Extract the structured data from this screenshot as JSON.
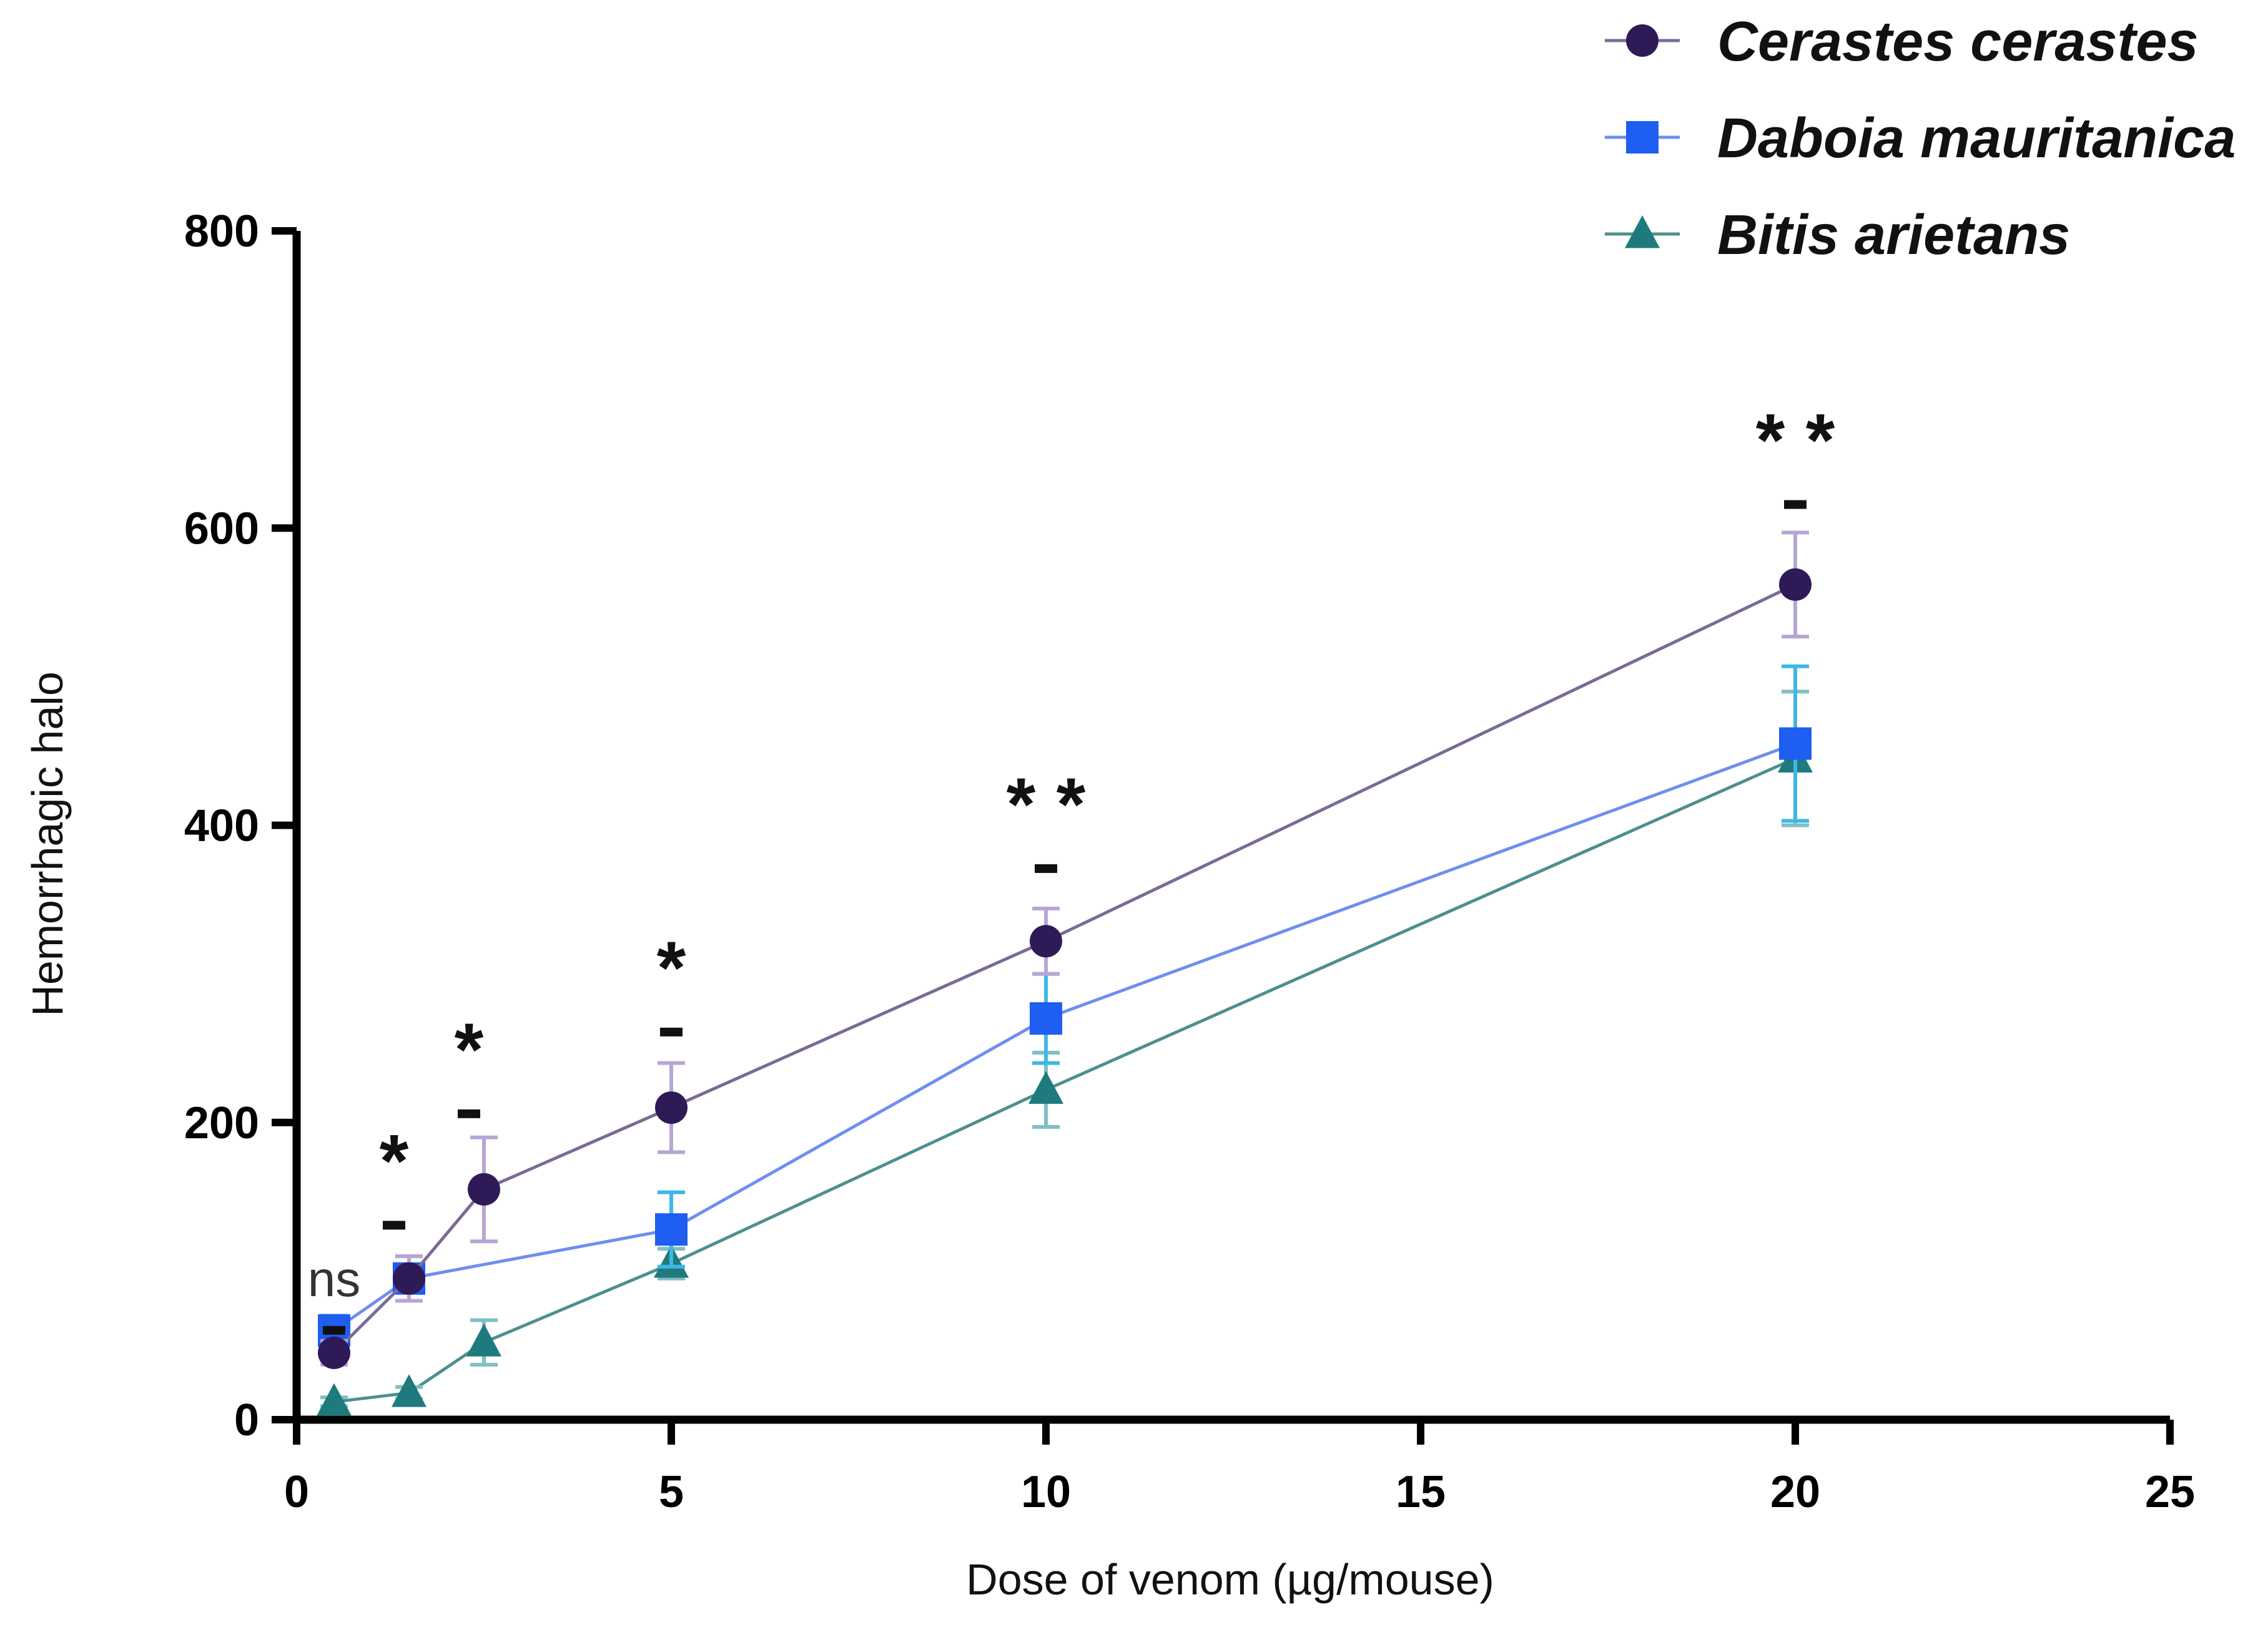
{
  "chart_data": {
    "type": "line",
    "xlabel": "Dose of venom (µg/mouse)",
    "ylabel": "Hemorrhagic halo",
    "xlim": [
      0,
      25
    ],
    "ylim": [
      0,
      800
    ],
    "x_ticks": [
      "0",
      "5",
      "10",
      "15",
      "20",
      "25"
    ],
    "y_ticks": [
      "0",
      "200",
      "400",
      "600",
      "800"
    ],
    "grid": false,
    "legend_position": "top-right",
    "x": [
      0.5,
      1.5,
      2.5,
      5,
      10,
      20
    ],
    "series": [
      {
        "name": "Cerastes cerastes",
        "marker": "circle",
        "color": "#2e1a57",
        "line_color": "#7b6a95",
        "error_color": "#b7a6d4",
        "x": [
          0.5,
          1.5,
          2.5,
          5,
          10,
          20
        ],
        "y": [
          45,
          95,
          155,
          210,
          322,
          562
        ],
        "error": [
          8,
          15,
          35,
          30,
          22,
          35
        ]
      },
      {
        "name": "Daboia mauritanica",
        "marker": "square",
        "color": "#1e5ef0",
        "line_color": "#6e8ef0",
        "error_color": "#3fb7e6",
        "x": [
          0.5,
          1.5,
          2.5,
          5,
          10,
          20
        ],
        "y": [
          60,
          95,
          null,
          128,
          270,
          455
        ],
        "error": [
          10,
          15,
          null,
          25,
          30,
          52
        ]
      },
      {
        "name": "Bitis arietans",
        "marker": "triangle",
        "color": "#1f7a7e",
        "line_color": "#4e8f8f",
        "error_color": "#7fc0c2",
        "x": [
          0.5,
          1.5,
          2.5,
          5,
          10,
          20
        ],
        "y": [
          12,
          18,
          52,
          105,
          222,
          445
        ],
        "error": [
          3,
          4,
          15,
          10,
          25,
          45
        ]
      }
    ],
    "annotations": [
      {
        "x": 0.5,
        "y": 100,
        "text": "ns",
        "dash": true
      },
      {
        "x": 1.3,
        "y": 180,
        "text": "*",
        "dash": true
      },
      {
        "x": 2.3,
        "y": 255,
        "text": "*",
        "dash": true
      },
      {
        "x": 5,
        "y": 310,
        "text": "*",
        "dash": true
      },
      {
        "x": 10,
        "y": 420,
        "text": "* *",
        "dash": true
      },
      {
        "x": 20,
        "y": 665,
        "text": "* *",
        "dash": true
      }
    ]
  }
}
